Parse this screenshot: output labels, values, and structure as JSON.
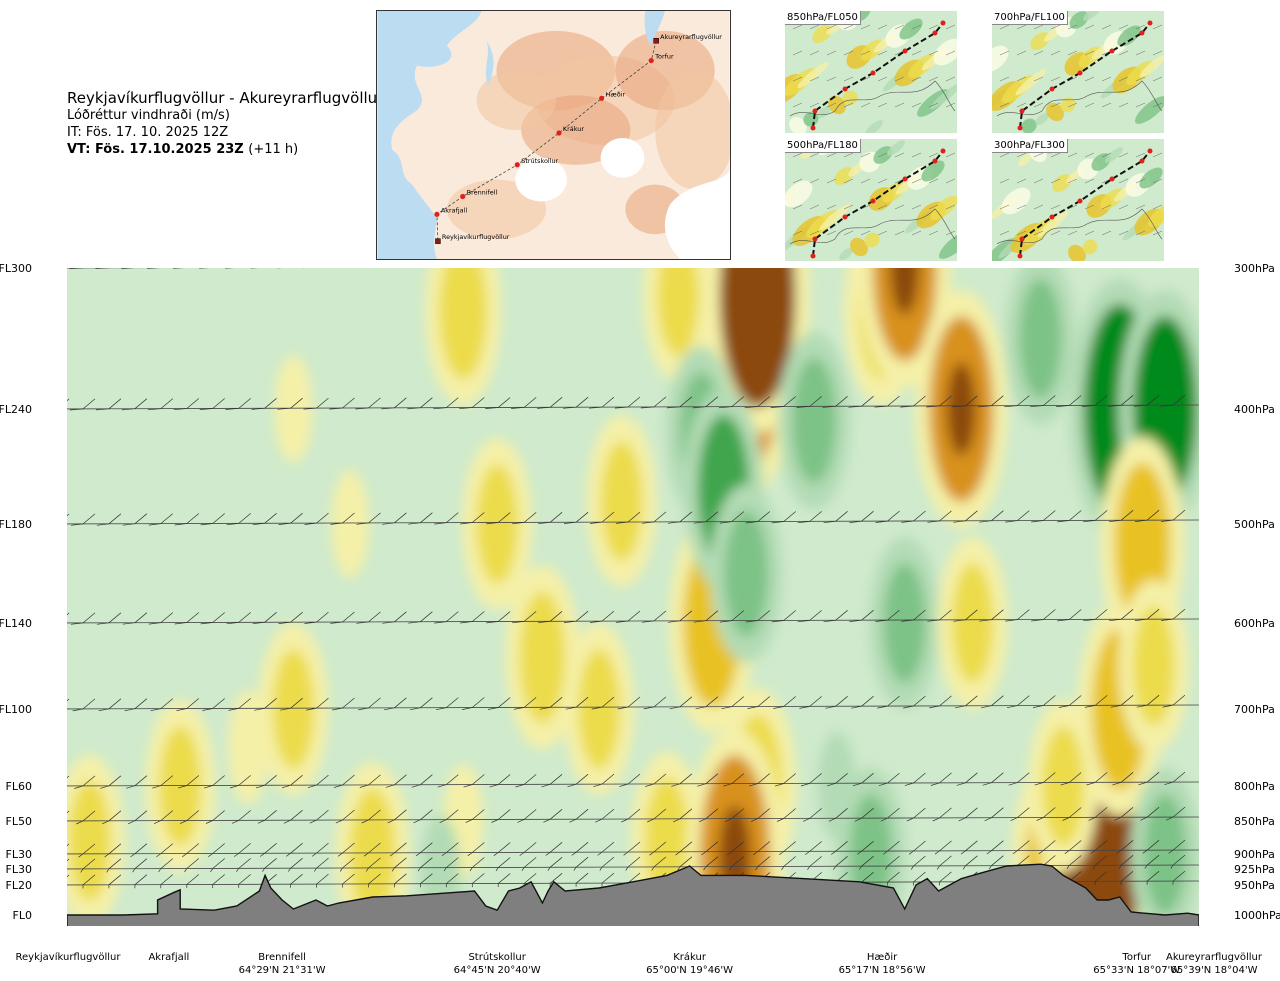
{
  "header": {
    "route": "Reykjavíkurflugvöllur - Akureyrarflugvöllur",
    "variable": "Lóðréttur vindhraði (m/s)",
    "issue_time": "IT: Fös. 17. 10. 2025 12Z",
    "valid_time": "VT: Fös. 17.10.2025 23Z",
    "lead_time": "(+11 h)"
  },
  "map_points": [
    {
      "name": "Akureyrarflugvöllur"
    },
    {
      "name": "Torfur"
    },
    {
      "name": "Hæðir"
    },
    {
      "name": "Krákur"
    },
    {
      "name": "Strútskollur"
    },
    {
      "name": "Brennifell"
    },
    {
      "name": "Akrafjall"
    },
    {
      "name": "Reykjavíkurflugvöllur"
    }
  ],
  "mini_maps": [
    {
      "label": "850hPa/FL050"
    },
    {
      "label": "700hPa/FL100"
    },
    {
      "label": "500hPa/FL180"
    },
    {
      "label": "300hPa/FL300"
    }
  ],
  "chart_data": {
    "type": "heatmap",
    "title": "Lóðréttur vindhraði (m/s)",
    "left_levels": [
      "FL300",
      "FL240",
      "FL180",
      "FL140",
      "FL100",
      "FL60",
      "FL50",
      "FL30",
      "FL30",
      "FL20",
      "FL0"
    ],
    "right_levels": [
      "300hPa",
      "400hPa",
      "500hPa",
      "600hPa",
      "700hPa",
      "800hPa",
      "850hPa",
      "900hPa",
      "925hPa",
      "950hPa",
      "1000hPa"
    ],
    "pressure_levels_hpa": [
      300,
      400,
      500,
      600,
      700,
      800,
      850,
      900,
      925,
      950,
      1000
    ],
    "route_points": [
      {
        "name": "Reykjavíkurflugvöllur",
        "coord": ""
      },
      {
        "name": "Akrafjall",
        "coord": ""
      },
      {
        "name": "Brennifell",
        "coord": "64°29'N 21°31'W"
      },
      {
        "name": "Strútskollur",
        "coord": "64°45'N 20°40'W"
      },
      {
        "name": "Krákur",
        "coord": "65°00'N 19°46'W"
      },
      {
        "name": "Hæðir",
        "coord": "65°17'N 18°56'W"
      },
      {
        "name": "Torfur",
        "coord": "65°33'N 18°07'W"
      },
      {
        "name": "Akureyrarflugvöllur",
        "coord": "65°39'N 18°04'W"
      }
    ],
    "route_fraction": [
      0.0,
      0.09,
      0.19,
      0.38,
      0.55,
      0.72,
      0.94,
      1.0
    ],
    "terrain_profile_hpa": [
      [
        0.0,
        1000
      ],
      [
        0.05,
        1000
      ],
      [
        0.08,
        998
      ],
      [
        0.08,
        975
      ],
      [
        0.095,
        962
      ],
      [
        0.1,
        958
      ],
      [
        0.1,
        990
      ],
      [
        0.13,
        992
      ],
      [
        0.15,
        985
      ],
      [
        0.17,
        960
      ],
      [
        0.175,
        935
      ],
      [
        0.18,
        955
      ],
      [
        0.19,
        975
      ],
      [
        0.2,
        990
      ],
      [
        0.22,
        975
      ],
      [
        0.23,
        985
      ],
      [
        0.24,
        980
      ],
      [
        0.27,
        970
      ],
      [
        0.3,
        968
      ],
      [
        0.33,
        964
      ],
      [
        0.36,
        960
      ],
      [
        0.37,
        985
      ],
      [
        0.38,
        992
      ],
      [
        0.39,
        960
      ],
      [
        0.4,
        955
      ],
      [
        0.41,
        945
      ],
      [
        0.42,
        980
      ],
      [
        0.425,
        960
      ],
      [
        0.43,
        945
      ],
      [
        0.44,
        960
      ],
      [
        0.47,
        955
      ],
      [
        0.5,
        945
      ],
      [
        0.53,
        935
      ],
      [
        0.55,
        920
      ],
      [
        0.56,
        935
      ],
      [
        0.6,
        935
      ],
      [
        0.65,
        940
      ],
      [
        0.7,
        945
      ],
      [
        0.73,
        955
      ],
      [
        0.74,
        990
      ],
      [
        0.75,
        950
      ],
      [
        0.76,
        940
      ],
      [
        0.77,
        960
      ],
      [
        0.79,
        940
      ],
      [
        0.81,
        930
      ],
      [
        0.83,
        920
      ],
      [
        0.86,
        917
      ],
      [
        0.87,
        920
      ],
      [
        0.88,
        935
      ],
      [
        0.9,
        955
      ],
      [
        0.91,
        975
      ],
      [
        0.92,
        975
      ],
      [
        0.93,
        970
      ],
      [
        0.94,
        995
      ],
      [
        0.97,
        1000
      ],
      [
        0.99,
        997
      ],
      [
        1.0,
        1000
      ]
    ],
    "vertical_velocity_ms": [
      {
        "x": 0.02,
        "p": 880,
        "w": 0.5
      },
      {
        "x": 0.1,
        "p": 800,
        "w": 0.5
      },
      {
        "x": 0.16,
        "p": 750,
        "w": 0.4
      },
      {
        "x": 0.2,
        "p": 700,
        "w": 0.5
      },
      {
        "x": 0.2,
        "p": 400,
        "w": 0.3
      },
      {
        "x": 0.25,
        "p": 500,
        "w": 0.3
      },
      {
        "x": 0.27,
        "p": 900,
        "w": 0.7
      },
      {
        "x": 0.35,
        "p": 850,
        "w": 0.4
      },
      {
        "x": 0.35,
        "p": 330,
        "w": 0.8
      },
      {
        "x": 0.38,
        "p": 500,
        "w": 0.5
      },
      {
        "x": 0.42,
        "p": 640,
        "w": 0.7
      },
      {
        "x": 0.47,
        "p": 700,
        "w": 0.5
      },
      {
        "x": 0.49,
        "p": 480,
        "w": 0.5
      },
      {
        "x": 0.54,
        "p": 320,
        "w": 0.5
      },
      {
        "x": 0.57,
        "p": 600,
        "w": 1.3
      },
      {
        "x": 0.61,
        "p": 800,
        "w": 0.9
      },
      {
        "x": 0.6,
        "p": 380,
        "w": 1.6
      },
      {
        "x": 0.61,
        "p": 320,
        "w": 2.2
      },
      {
        "x": 0.56,
        "p": 420,
        "w": -0.5
      },
      {
        "x": 0.58,
        "p": 470,
        "w": -1.0
      },
      {
        "x": 0.6,
        "p": 550,
        "w": -0.6
      },
      {
        "x": 0.53,
        "p": 880,
        "w": 0.6
      },
      {
        "x": 0.59,
        "p": 905,
        "w": 1.9
      },
      {
        "x": 0.66,
        "p": 410,
        "w": -0.6
      },
      {
        "x": 0.71,
        "p": 900,
        "w": -0.5
      },
      {
        "x": 0.72,
        "p": 330,
        "w": 0.8
      },
      {
        "x": 0.74,
        "p": 300,
        "w": 1.6
      },
      {
        "x": 0.74,
        "p": 600,
        "w": -0.5
      },
      {
        "x": 0.79,
        "p": 400,
        "w": 1.6
      },
      {
        "x": 0.8,
        "p": 600,
        "w": 0.5
      },
      {
        "x": 0.86,
        "p": 350,
        "w": -0.5
      },
      {
        "x": 0.87,
        "p": 910,
        "w": 1.0
      },
      {
        "x": 0.91,
        "p": 930,
        "w": 2.5
      },
      {
        "x": 0.93,
        "p": 400,
        "w": -2.0
      },
      {
        "x": 0.93,
        "p": 700,
        "w": 1.2
      },
      {
        "x": 0.97,
        "p": 400,
        "w": -1.6
      },
      {
        "x": 0.95,
        "p": 520,
        "w": 1.2
      },
      {
        "x": 0.96,
        "p": 650,
        "w": 0.5
      },
      {
        "x": 0.97,
        "p": 900,
        "w": -0.5
      },
      {
        "x": 0.88,
        "p": 800,
        "w": 0.5
      },
      {
        "x": 0.68,
        "p": 800,
        "w": -0.3
      },
      {
        "x": 0.33,
        "p": 930,
        "w": -0.4
      }
    ],
    "color_levels_ms": [
      -2.0,
      -1.5,
      -1.0,
      -0.5,
      -0.2,
      0.2,
      0.5,
      1.0,
      1.5,
      2.0,
      2.5
    ],
    "colors": {
      "strong_down": "#008a1c",
      "down_3": "#3fa54e",
      "down_2": "#7dc286",
      "down_1": "#b3dbb5",
      "weak_down": "#d7efd7",
      "neutral": "#fdfde6",
      "weak_up": "#f5f0a8",
      "up_1": "#ecdc4c",
      "up_2": "#e8c222",
      "up_3": "#d8911f",
      "strong_up": "#8b4a10",
      "terrain": "#7f7f7f",
      "terrain_edge": "#111111"
    },
    "wind_barbs": [
      {
        "p": 300,
        "dir_deg": 250,
        "speed_kt": 25
      },
      {
        "p": 400,
        "dir_deg": 245,
        "speed_kt": 25
      },
      {
        "p": 500,
        "dir_deg": 240,
        "speed_kt": 20
      },
      {
        "p": 600,
        "dir_deg": 240,
        "speed_kt": 20
      },
      {
        "p": 700,
        "dir_deg": 230,
        "speed_kt": 15
      },
      {
        "p": 800,
        "dir_deg": 220,
        "speed_kt": 15
      },
      {
        "p": 850,
        "dir_deg": 210,
        "speed_kt": 15
      },
      {
        "p": 900,
        "dir_deg": 200,
        "speed_kt": 10
      },
      {
        "p": 925,
        "dir_deg": 190,
        "speed_kt": 10
      },
      {
        "p": 950,
        "dir_deg": 180,
        "speed_kt": 10
      }
    ]
  },
  "map_colors": {
    "sea": "#bcdcf2",
    "land_low": "#faeadb",
    "land_mid": "#f2c4a0",
    "land_high": "#e8a278",
    "ice": "#ffffff",
    "route": "#444444",
    "point": "#e0201c"
  }
}
